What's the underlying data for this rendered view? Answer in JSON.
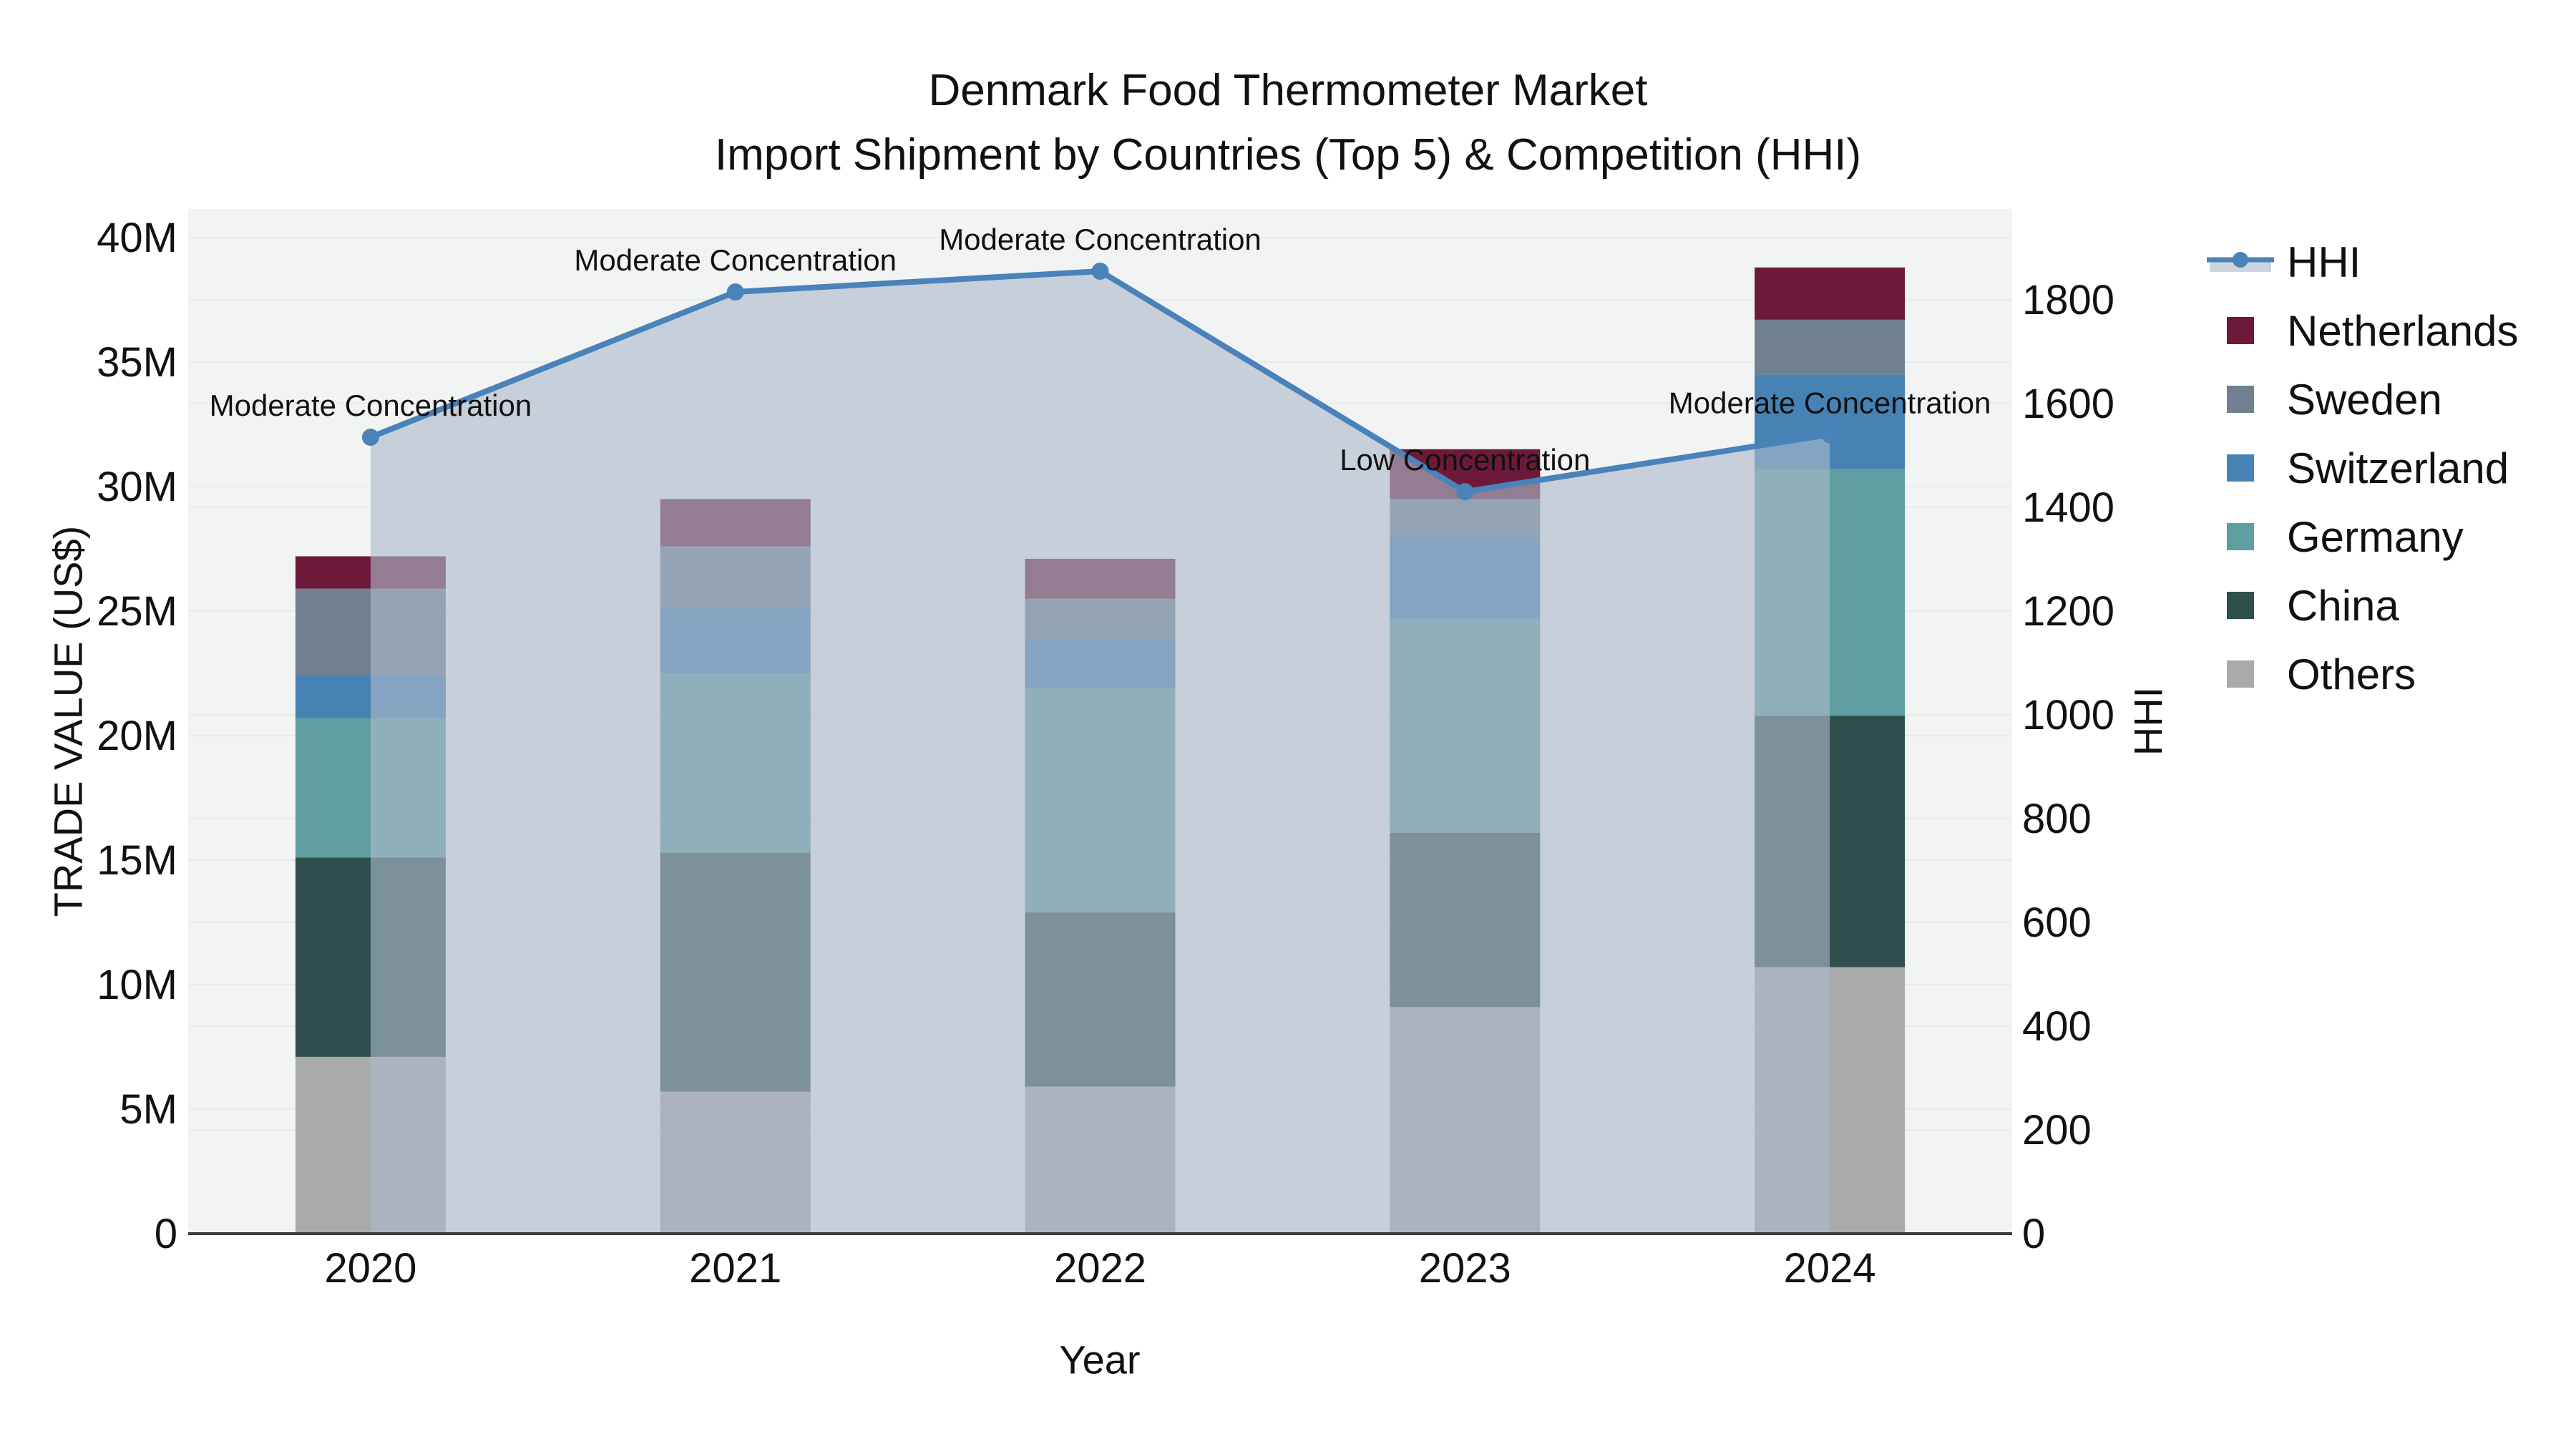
{
  "title": {
    "line1": "Denmark Food Thermometer Market",
    "line2": "Import Shipment by Countries (Top 5) & Competition (HHI)"
  },
  "chart_data": {
    "type": "combo-stacked-bar-line",
    "title": "Denmark Food Thermometer Market — Import Shipment by Countries (Top 5) & Competition (HHI)",
    "categories": [
      "2020",
      "2021",
      "2022",
      "2023",
      "2024"
    ],
    "xlabel": "Year",
    "bar_unit": "US$ millions (left axis)",
    "series": [
      {
        "name": "Others",
        "color": "#a9abab",
        "values": [
          7.1,
          5.7,
          5.9,
          9.1,
          10.7
        ]
      },
      {
        "name": "China",
        "color": "#2f4f4c",
        "values": [
          8.0,
          9.6,
          7.0,
          7.0,
          10.1
        ]
      },
      {
        "name": "Germany",
        "color": "#5f9ea0",
        "values": [
          5.6,
          7.2,
          9.0,
          8.6,
          9.9
        ]
      },
      {
        "name": "Switzerland",
        "color": "#4682b4",
        "values": [
          1.7,
          2.6,
          2.0,
          3.3,
          3.8
        ]
      },
      {
        "name": "Sweden",
        "color": "#708090",
        "values": [
          3.5,
          2.5,
          1.6,
          1.5,
          2.2
        ]
      },
      {
        "name": "Netherlands",
        "color": "#6d1a3a",
        "values": [
          1.3,
          1.9,
          1.6,
          2.0,
          2.1
        ]
      }
    ],
    "bar_totals": [
      27.2,
      29.5,
      27.1,
      31.5,
      38.8
    ],
    "line_series": {
      "name": "HHI",
      "axis": "right",
      "color": "#4a82ba",
      "area_color": "rgba(172,186,201,0.62)",
      "values": [
        1535,
        1815,
        1855,
        1430,
        1540
      ]
    },
    "annotations": [
      {
        "index": 0,
        "text": "Moderate Concentration"
      },
      {
        "index": 1,
        "text": "Moderate Concentration"
      },
      {
        "index": 2,
        "text": "Moderate Concentration"
      },
      {
        "index": 3,
        "text": "Low Concentration"
      },
      {
        "index": 4,
        "text": "Moderate Concentration"
      }
    ],
    "left_axis": {
      "title": "TRADE VALUE (US$)",
      "range": [
        0,
        41.15
      ],
      "ticks": [
        {
          "v": 0,
          "label": "0"
        },
        {
          "v": 5,
          "label": "5M"
        },
        {
          "v": 10,
          "label": "10M"
        },
        {
          "v": 15,
          "label": "15M"
        },
        {
          "v": 20,
          "label": "20M"
        },
        {
          "v": 25,
          "label": "25M"
        },
        {
          "v": 30,
          "label": "30M"
        },
        {
          "v": 35,
          "label": "35M"
        },
        {
          "v": 40,
          "label": "40M"
        }
      ]
    },
    "right_axis": {
      "title": "HHI",
      "range": [
        0,
        1975
      ],
      "ticks": [
        {
          "v": 0,
          "label": "0"
        },
        {
          "v": 200,
          "label": "200"
        },
        {
          "v": 400,
          "label": "400"
        },
        {
          "v": 600,
          "label": "600"
        },
        {
          "v": 800,
          "label": "800"
        },
        {
          "v": 1000,
          "label": "1000"
        },
        {
          "v": 1200,
          "label": "1200"
        },
        {
          "v": 1400,
          "label": "1400"
        },
        {
          "v": 1600,
          "label": "1600"
        },
        {
          "v": 1800,
          "label": "1800"
        }
      ]
    },
    "grid": true,
    "legend_position": "right",
    "plot_bg": "#f2f3f3",
    "grid_color": "#e8eaec",
    "axisline_color": "#3f3f3f",
    "text_color": "#111111"
  }
}
